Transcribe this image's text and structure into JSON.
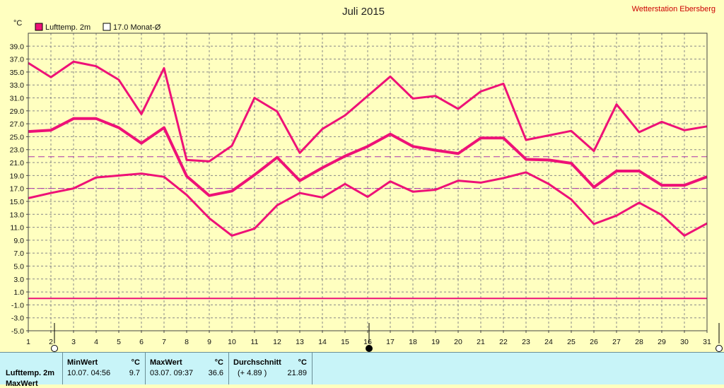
{
  "header": {
    "title": "Juli 2015",
    "station": "Wetterstation Ebersberg"
  },
  "legend": {
    "unit": "°C",
    "series_label": "Lufttemp. 2m",
    "avg_label": "17.0 Monat-Ø"
  },
  "colors": {
    "background": "#ffffc0",
    "series": "#ee1177",
    "avg_line": "#aa33aa",
    "grid": "#888888",
    "panel": "#c8f4f8"
  },
  "chart_data": {
    "type": "line",
    "title": "Juli 2015",
    "ylabel": "°C",
    "ylim": [
      -5.0,
      41.0
    ],
    "yticks": [
      39.0,
      37.0,
      35.0,
      33.0,
      31.0,
      29.0,
      27.0,
      25.0,
      23.0,
      21.0,
      19.0,
      17.0,
      15.0,
      13.0,
      11.0,
      9.0,
      7.0,
      5.0,
      3.0,
      1.0,
      -1.0,
      -3.0,
      -5.0
    ],
    "ytick_labels": [
      "39.0",
      "37.0",
      "35.0",
      "33.0",
      "31.0",
      "29.0",
      "27.0",
      "25.0",
      "23.0",
      "21.0",
      "19.0",
      "17.0",
      "15.0",
      "13.0",
      "11.0",
      "9.0",
      "7.0",
      "5.0",
      "3.0",
      "1.0",
      "-1.0",
      "-3.0",
      "-5.0"
    ],
    "x": [
      1,
      2,
      3,
      4,
      5,
      6,
      7,
      8,
      9,
      10,
      11,
      12,
      13,
      14,
      15,
      16,
      17,
      18,
      19,
      20,
      21,
      22,
      23,
      24,
      25,
      26,
      27,
      28,
      29,
      30,
      31
    ],
    "xtick_labels": [
      "1",
      "2",
      "3",
      "4",
      "5",
      "6",
      "7",
      "8",
      "9",
      "10",
      "11",
      "12",
      "13",
      "14",
      "15",
      "16",
      "17",
      "18",
      "19",
      "20",
      "21",
      "22",
      "23",
      "24",
      "25",
      "26",
      "27",
      "28",
      "29",
      "30",
      "31"
    ],
    "grid": true,
    "series": [
      {
        "name": "Lufttemp. 2m",
        "role": "max",
        "values": [
          36.4,
          34.2,
          36.6,
          35.9,
          33.8,
          28.5,
          35.6,
          21.4,
          21.2,
          23.6,
          31.0,
          28.9,
          22.5,
          26.2,
          28.3,
          31.3,
          34.3,
          30.9,
          31.3,
          29.3,
          32.0,
          33.2,
          24.5,
          25.2,
          25.9,
          22.8,
          30.0,
          25.7,
          27.3,
          26.0,
          26.6
        ]
      },
      {
        "role": "mean",
        "values": [
          25.8,
          26.0,
          27.8,
          27.8,
          26.4,
          24.0,
          26.4,
          18.9,
          15.9,
          16.6,
          19.1,
          21.8,
          18.2,
          20.2,
          22.0,
          23.5,
          25.4,
          23.5,
          22.9,
          22.4,
          24.8,
          24.8,
          21.5,
          21.4,
          20.9,
          17.2,
          19.7,
          19.7,
          17.5,
          17.5,
          18.8
        ]
      },
      {
        "role": "min",
        "values": [
          15.5,
          16.3,
          17.0,
          18.7,
          19.0,
          19.3,
          18.8,
          16.0,
          12.4,
          9.7,
          10.8,
          14.4,
          16.3,
          15.6,
          17.7,
          15.7,
          18.1,
          16.5,
          16.8,
          18.2,
          17.9,
          18.6,
          19.5,
          17.7,
          15.3,
          11.5,
          12.8,
          14.8,
          12.9,
          9.7,
          11.6
        ]
      }
    ],
    "reference_lines": [
      {
        "value": 21.9,
        "style": "dashed"
      },
      {
        "value": 17.0,
        "style": "dashed"
      },
      {
        "value": 0.0,
        "style": "solid"
      }
    ]
  },
  "stats_panel": {
    "row_label": "Lufttemp. 2m",
    "row2_label": "MaxWert",
    "min_header": "MinWert",
    "min_unit": "°C",
    "min_time": "10.07.  04:56",
    "min_value": "9.7",
    "max_header": "MaxWert",
    "max_unit": "°C",
    "max_time": "03.07.  09:37",
    "max_value": "36.6",
    "avg_header": "Durchschnitt",
    "avg_unit": "°C",
    "avg_diff": "(+ 4.89 )",
    "avg_value": "21.89"
  }
}
